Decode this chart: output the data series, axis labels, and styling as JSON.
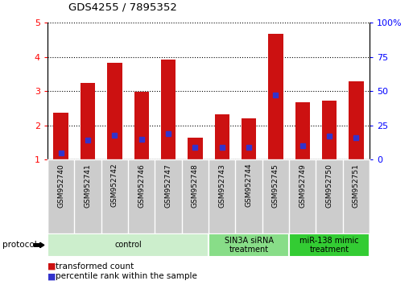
{
  "title": "GDS4255 / 7895352",
  "samples": [
    "GSM952740",
    "GSM952741",
    "GSM952742",
    "GSM952746",
    "GSM952747",
    "GSM952748",
    "GSM952743",
    "GSM952744",
    "GSM952745",
    "GSM952749",
    "GSM952750",
    "GSM952751"
  ],
  "transformed_counts": [
    2.38,
    3.25,
    3.82,
    2.98,
    3.92,
    1.65,
    2.32,
    2.2,
    4.68,
    2.68,
    2.72,
    3.3
  ],
  "percentile_ranks": [
    5,
    14,
    18,
    15,
    19,
    9,
    9,
    9,
    47,
    10,
    17,
    16
  ],
  "bar_color": "#cc1111",
  "dot_color": "#3333cc",
  "ylim_left": [
    1,
    5
  ],
  "ylim_right": [
    0,
    100
  ],
  "yticks_left": [
    1,
    2,
    3,
    4,
    5
  ],
  "yticks_right": [
    0,
    25,
    50,
    75,
    100
  ],
  "ytick_labels_right": [
    "0",
    "25",
    "50",
    "75",
    "100%"
  ],
  "groups": [
    {
      "label": "control",
      "start": 0,
      "end": 5,
      "color": "#cceecc"
    },
    {
      "label": "SIN3A siRNA\ntreatment",
      "start": 6,
      "end": 8,
      "color": "#88dd88"
    },
    {
      "label": "miR-138 mimic\ntreatment",
      "start": 9,
      "end": 11,
      "color": "#33cc33"
    }
  ],
  "protocol_label": "protocol",
  "legend_items": [
    {
      "label": "transformed count",
      "color": "#cc1111"
    },
    {
      "label": "percentile rank within the sample",
      "color": "#3333cc"
    }
  ],
  "bar_width": 0.55,
  "background_color": "#ffffff",
  "plot_bg_color": "#ffffff",
  "label_area_color": "#cccccc"
}
